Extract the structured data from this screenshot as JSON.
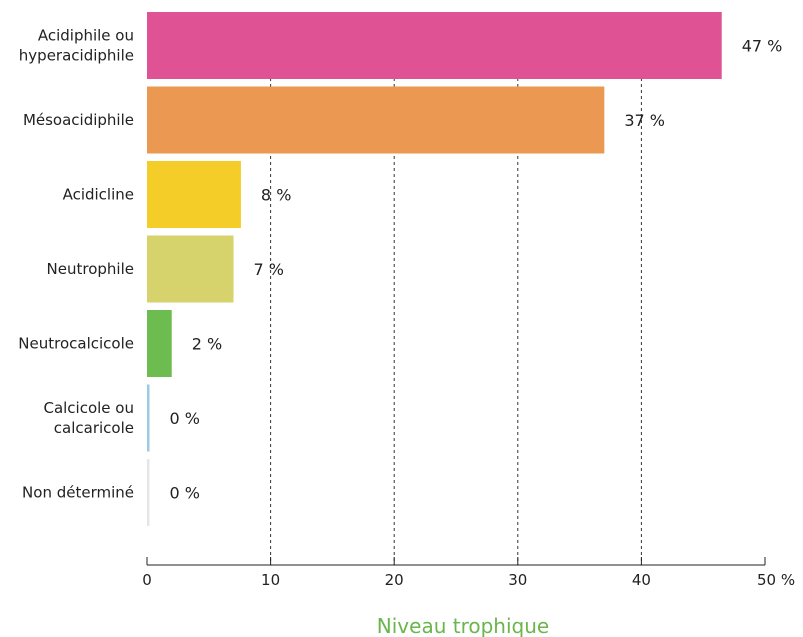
{
  "chart_data": {
    "type": "bar",
    "orientation": "horizontal",
    "categories": [
      [
        "Acidiphile ou",
        "hyperacidiphile"
      ],
      [
        "Mésoacidiphile"
      ],
      [
        "Acidicline"
      ],
      [
        "Neutrophile"
      ],
      [
        "Neutrocalcicole"
      ],
      [
        "Calcicole ou",
        "calcaricole"
      ],
      [
        "Non déterminé"
      ]
    ],
    "values": [
      46.5,
      37,
      7.6,
      7,
      2,
      0.2,
      0.2
    ],
    "value_labels": [
      "47 %",
      "37 %",
      "8 %",
      "7 %",
      "2 %",
      "0 %",
      "0 %"
    ],
    "colors": [
      "#df5395",
      "#eb9852",
      "#f5cd28",
      "#d6d26c",
      "#6cbc4f",
      "#9dc9e6",
      "#e6e6e6"
    ],
    "xlim": [
      0,
      50
    ],
    "xticks": [
      0,
      10,
      20,
      30,
      40,
      50
    ],
    "xtick_labels": [
      "0",
      "10",
      "20",
      "30",
      "40",
      "50 %"
    ],
    "xlabel": "Niveau trophique",
    "xlabel_color": "#6ab64c",
    "grid": "vertical dashed at 10, 20, 30, 40"
  }
}
